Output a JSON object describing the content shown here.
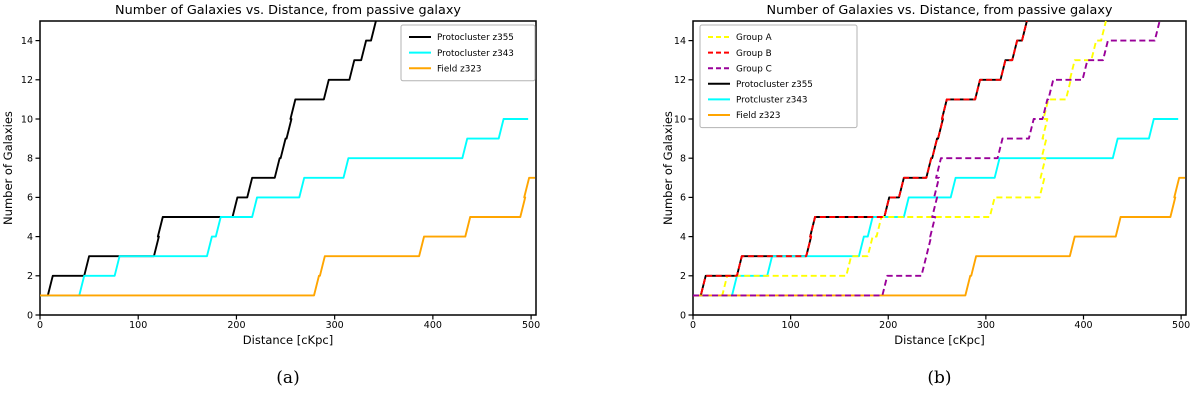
{
  "captions": [
    "(a)",
    "(b)"
  ],
  "palette": {
    "black": "#000000",
    "cyan": "#00ffff",
    "orange": "#ffa500",
    "yellow": "#ffff00",
    "red": "#ff0000",
    "purple": "#990099",
    "axis": "#000000",
    "legend_border": "#b3b3b3"
  },
  "chart_data": [
    {
      "type": "line",
      "title": "Number of Galaxies vs. Distance, from passive galaxy",
      "xlabel": "Distance [cKpc]",
      "ylabel": "Number of Galaxies",
      "xticks": [
        0,
        100,
        200,
        300,
        400,
        500
      ],
      "yticks": [
        0,
        2,
        4,
        6,
        8,
        10,
        12,
        14
      ],
      "xlim": [
        0,
        505
      ],
      "ylim": [
        0,
        15
      ],
      "grid": false,
      "legend_position": "top-right",
      "legend_order": [
        0,
        1,
        2
      ],
      "series": [
        {
          "label": "Protocluster z355",
          "color": "#000000",
          "dash": false,
          "start_value": 1,
          "steps": [
            [
              10,
              2
            ],
            [
              47,
              3
            ],
            [
              118,
              4
            ],
            [
              122,
              5
            ],
            [
              198,
              6
            ],
            [
              213,
              7
            ],
            [
              241,
              8
            ],
            [
              247,
              9
            ],
            [
              253,
              10
            ],
            [
              257,
              11
            ],
            [
              291,
              12
            ],
            [
              317,
              13
            ],
            [
              329,
              14
            ],
            [
              339,
              15
            ]
          ],
          "end_x": 342
        },
        {
          "label": "Protocluster z343",
          "color": "#00ffff",
          "dash": false,
          "start_value": 1,
          "steps": [
            [
              42,
              2
            ],
            [
              78,
              3
            ],
            [
              172,
              4
            ],
            [
              181,
              5
            ],
            [
              218,
              6
            ],
            [
              266,
              7
            ],
            [
              311,
              8
            ],
            [
              432,
              9
            ],
            [
              469,
              10
            ]
          ],
          "end_x": 497
        },
        {
          "label": "Field z323",
          "color": "#ffa500",
          "dash": false,
          "start_value": 1,
          "steps": [
            [
              281,
              2
            ],
            [
              287,
              3
            ],
            [
              388,
              4
            ],
            [
              435,
              5
            ],
            [
              491,
              6
            ],
            [
              495,
              7
            ]
          ],
          "end_x": 504
        }
      ]
    },
    {
      "type": "line",
      "title": "Number of Galaxies vs. Distance, from passive galaxy",
      "xlabel": "Distance [cKpc]",
      "ylabel": "Number of Galaxies",
      "xticks": [
        0,
        100,
        200,
        300,
        400,
        500
      ],
      "yticks": [
        0,
        2,
        4,
        6,
        8,
        10,
        12,
        14
      ],
      "xlim": [
        0,
        505
      ],
      "ylim": [
        0,
        15
      ],
      "grid": false,
      "legend_position": "top-left",
      "legend_order": [
        3,
        4,
        5,
        0,
        1,
        2
      ],
      "series": [
        {
          "label": "Protocluster z355",
          "color": "#000000",
          "dash": false,
          "start_value": 1,
          "steps": [
            [
              10,
              2
            ],
            [
              47,
              3
            ],
            [
              118,
              4
            ],
            [
              122,
              5
            ],
            [
              198,
              6
            ],
            [
              213,
              7
            ],
            [
              241,
              8
            ],
            [
              247,
              9
            ],
            [
              253,
              10
            ],
            [
              257,
              11
            ],
            [
              291,
              12
            ],
            [
              317,
              13
            ],
            [
              329,
              14
            ],
            [
              339,
              15
            ]
          ],
          "end_x": 342
        },
        {
          "label": "Protcluster z343",
          "color": "#00ffff",
          "dash": false,
          "start_value": 1,
          "steps": [
            [
              42,
              2
            ],
            [
              78,
              3
            ],
            [
              172,
              4
            ],
            [
              181,
              5
            ],
            [
              218,
              6
            ],
            [
              266,
              7
            ],
            [
              311,
              8
            ],
            [
              432,
              9
            ],
            [
              469,
              10
            ]
          ],
          "end_x": 497
        },
        {
          "label": "Field z323",
          "color": "#ffa500",
          "dash": false,
          "start_value": 1,
          "steps": [
            [
              281,
              2
            ],
            [
              287,
              3
            ],
            [
              388,
              4
            ],
            [
              435,
              5
            ],
            [
              491,
              6
            ],
            [
              495,
              7
            ]
          ],
          "end_x": 504
        },
        {
          "label": "Group A",
          "color": "#ffff00",
          "dash": true,
          "start_value": 1,
          "steps": [
            [
              32,
              2
            ],
            [
              159,
              3
            ],
            [
              181,
              4
            ],
            [
              190,
              5
            ],
            [
              306,
              6
            ],
            [
              357,
              7
            ],
            [
              358,
              8
            ],
            [
              359,
              9
            ],
            [
              360,
              10
            ],
            [
              361,
              11
            ],
            [
              384,
              12
            ],
            [
              388,
              13
            ],
            [
              410,
              14
            ],
            [
              420,
              15
            ]
          ],
          "end_x": 423
        },
        {
          "label": "Group B",
          "color": "#ff0000",
          "dash": true,
          "start_value": 1,
          "steps": [
            [
              10,
              2
            ],
            [
              47,
              3
            ],
            [
              118,
              4
            ],
            [
              122,
              5
            ],
            [
              198,
              6
            ],
            [
              213,
              7
            ],
            [
              241,
              8
            ],
            [
              247,
              9
            ],
            [
              253,
              10
            ],
            [
              257,
              11
            ],
            [
              291,
              12
            ],
            [
              317,
              13
            ],
            [
              329,
              14
            ],
            [
              339,
              15
            ]
          ],
          "end_x": 342
        },
        {
          "label": "Group C",
          "color": "#990099",
          "dash": true,
          "start_value": 1,
          "steps": [
            [
              196,
              2
            ],
            [
              236,
              3
            ],
            [
              241,
              4
            ],
            [
              245,
              5
            ],
            [
              247,
              6
            ],
            [
              249,
              7
            ],
            [
              251,
              8
            ],
            [
              314,
              9
            ],
            [
              346,
              10
            ],
            [
              360,
              11
            ],
            [
              366,
              12
            ],
            [
              401,
              13
            ],
            [
              422,
              14
            ],
            [
              475,
              15
            ]
          ],
          "end_x": 478
        }
      ]
    }
  ]
}
